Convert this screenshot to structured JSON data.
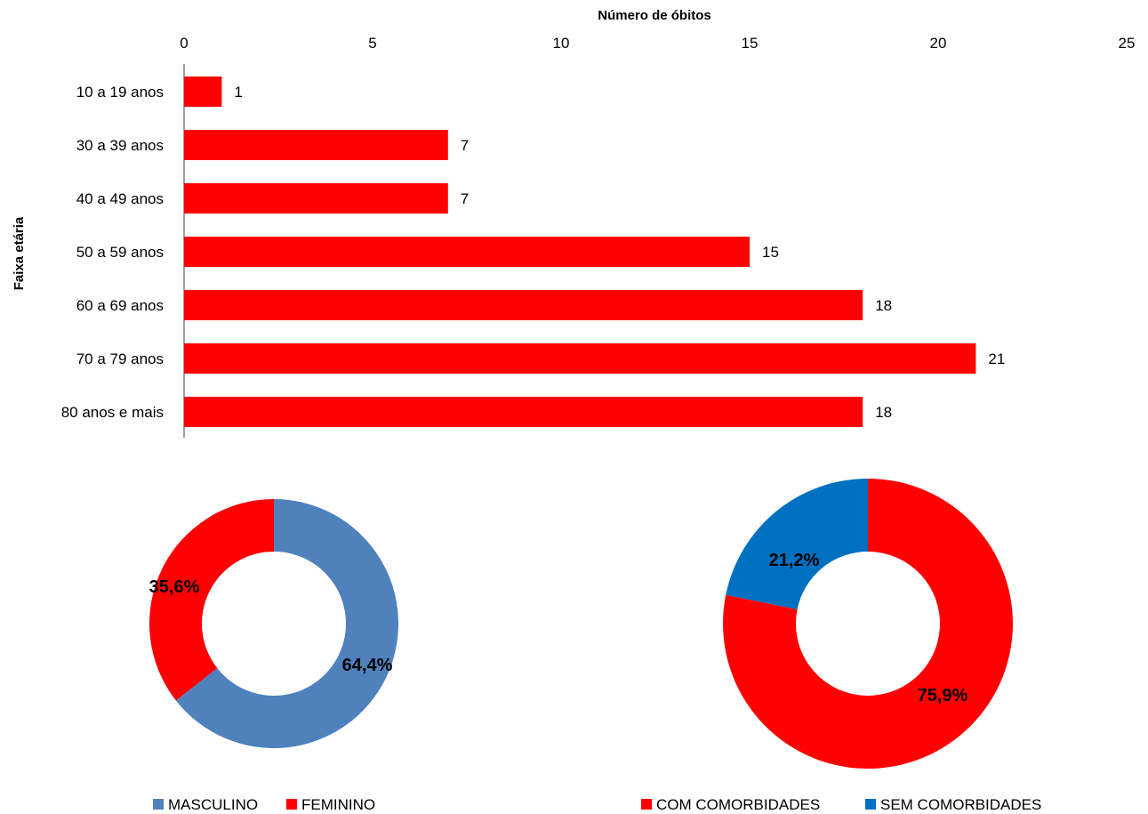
{
  "chart_data": [
    {
      "type": "bar",
      "orientation": "horizontal",
      "xlabel": "Número de óbitos",
      "ylabel": "Faixa etária",
      "xlim": [
        0,
        25
      ],
      "xticks": [
        0,
        5,
        10,
        15,
        20,
        25
      ],
      "categories": [
        "10 a 19 anos",
        "30 a 39 anos",
        "40 a 49 anos",
        "50 a 59 anos",
        "60 a 69 anos",
        "70 a 79 anos",
        "80 anos e mais"
      ],
      "values": [
        1,
        7,
        7,
        15,
        18,
        21,
        18
      ],
      "data_labels": [
        "1",
        "7",
        "7",
        "15",
        "18",
        "21",
        "18"
      ],
      "color": "#ff0000",
      "axis_position": "top",
      "grid": false
    },
    {
      "type": "pie",
      "style": "donut",
      "slices": [
        {
          "name": "MASCULINO",
          "value": 64.4,
          "label": "64,4%",
          "color": "#4f81bd"
        },
        {
          "name": "FEMININO",
          "value": 35.6,
          "label": "35,6%",
          "color": "#ff0000"
        }
      ],
      "legend_position": "bottom"
    },
    {
      "type": "pie",
      "style": "donut",
      "slices": [
        {
          "name": "COM COMORBIDADES",
          "value": 75.9,
          "label": "75,9%",
          "color": "#ff0000"
        },
        {
          "name": "SEM COMORBIDADES",
          "value": 21.2,
          "label": "21,2%",
          "color": "#0070c0"
        }
      ],
      "legend_position": "bottom"
    }
  ]
}
